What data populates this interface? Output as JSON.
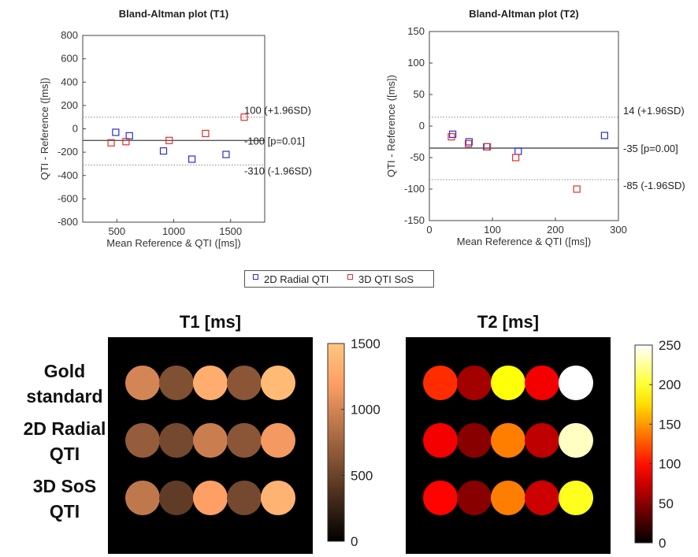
{
  "chart_data": [
    {
      "type": "scatter",
      "title": "Bland-Altman plot (T1)",
      "xlabel": "Mean Reference & QTI ([ms])",
      "ylabel": "QTI - Reference ([ms])",
      "xlim": [
        200,
        1800
      ],
      "ylim": [
        -800,
        800
      ],
      "xticks": [
        500,
        1000,
        1500
      ],
      "yticks": [
        -800,
        -600,
        -400,
        -200,
        0,
        200,
        400,
        600,
        800
      ],
      "series": [
        {
          "name": "2D Radial QTI",
          "color": "#2b2bd9",
          "points": [
            [
              490,
              -30
            ],
            [
              610,
              -60
            ],
            [
              910,
              -190
            ],
            [
              1160,
              -260
            ],
            [
              1460,
              -220
            ]
          ]
        },
        {
          "name": "3D QTI SoS",
          "color": "#e03030",
          "points": [
            [
              450,
              -120
            ],
            [
              580,
              -110
            ],
            [
              960,
              -100
            ],
            [
              1280,
              -40
            ],
            [
              1620,
              100
            ]
          ]
        }
      ],
      "lines": [
        {
          "value": 100,
          "style": "dotted",
          "label": "100 (+1.96SD)"
        },
        {
          "value": -100,
          "style": "solid",
          "label": "-100 [p=0.01]"
        },
        {
          "value": -310,
          "style": "dotted",
          "label": "-310 (-1.96SD)"
        }
      ]
    },
    {
      "type": "scatter",
      "title": "Bland-Altman plot (T2)",
      "xlabel": "Mean Reference & QTI ([ms])",
      "ylabel": "QTI - Reference ([ms])",
      "xlim": [
        0,
        300
      ],
      "ylim": [
        -150,
        150
      ],
      "xticks": [
        0,
        100,
        200,
        300
      ],
      "yticks": [
        -150,
        -100,
        -50,
        0,
        50,
        100,
        150
      ],
      "series": [
        {
          "name": "2D Radial QTI",
          "color": "#2b2bd9",
          "points": [
            [
              37,
              -13
            ],
            [
              63,
              -25
            ],
            [
              91,
              -33
            ],
            [
              141,
              -40
            ],
            [
              278,
              -15
            ]
          ]
        },
        {
          "name": "3D QTI SoS",
          "color": "#e03030",
          "points": [
            [
              35,
              -17
            ],
            [
              62,
              -28
            ],
            [
              92,
              -33
            ],
            [
              137,
              -50
            ],
            [
              234,
              -100
            ]
          ]
        }
      ],
      "lines": [
        {
          "value": 14,
          "style": "dotted",
          "label": "14 (+1.96SD)"
        },
        {
          "value": -35,
          "style": "solid",
          "label": "-35 [p=0.00]"
        },
        {
          "value": -85,
          "style": "dotted",
          "label": "-85 (-1.96SD)"
        }
      ]
    },
    {
      "type": "heatmap",
      "title": "T1 [ms]",
      "row_labels": [
        "Gold standard",
        "2D Radial QTI",
        "3D SoS QTI"
      ],
      "colorbar": {
        "min": 0,
        "max": 1500,
        "ticks": [
          0,
          500,
          1000,
          1500
        ],
        "colormap": "copper"
      },
      "values": [
        [
          1000,
          600,
          1300,
          650,
          1400
        ],
        [
          700,
          550,
          950,
          650,
          1150
        ],
        [
          900,
          450,
          1200,
          550,
          1350
        ]
      ]
    },
    {
      "type": "heatmap",
      "title": "T2 [ms]",
      "colorbar": {
        "min": 0,
        "max": 250,
        "ticks": [
          0,
          50,
          100,
          150,
          200,
          250
        ],
        "colormap": "hot"
      },
      "values": [
        [
          110,
          60,
          190,
          90,
          250
        ],
        [
          90,
          50,
          140,
          70,
          235
        ],
        [
          95,
          50,
          140,
          75,
          195
        ]
      ]
    }
  ],
  "row_labels_display": [
    [
      "Gold",
      "standard"
    ],
    [
      "2D Radial",
      "QTI"
    ],
    [
      "3D SoS",
      "QTI"
    ]
  ]
}
